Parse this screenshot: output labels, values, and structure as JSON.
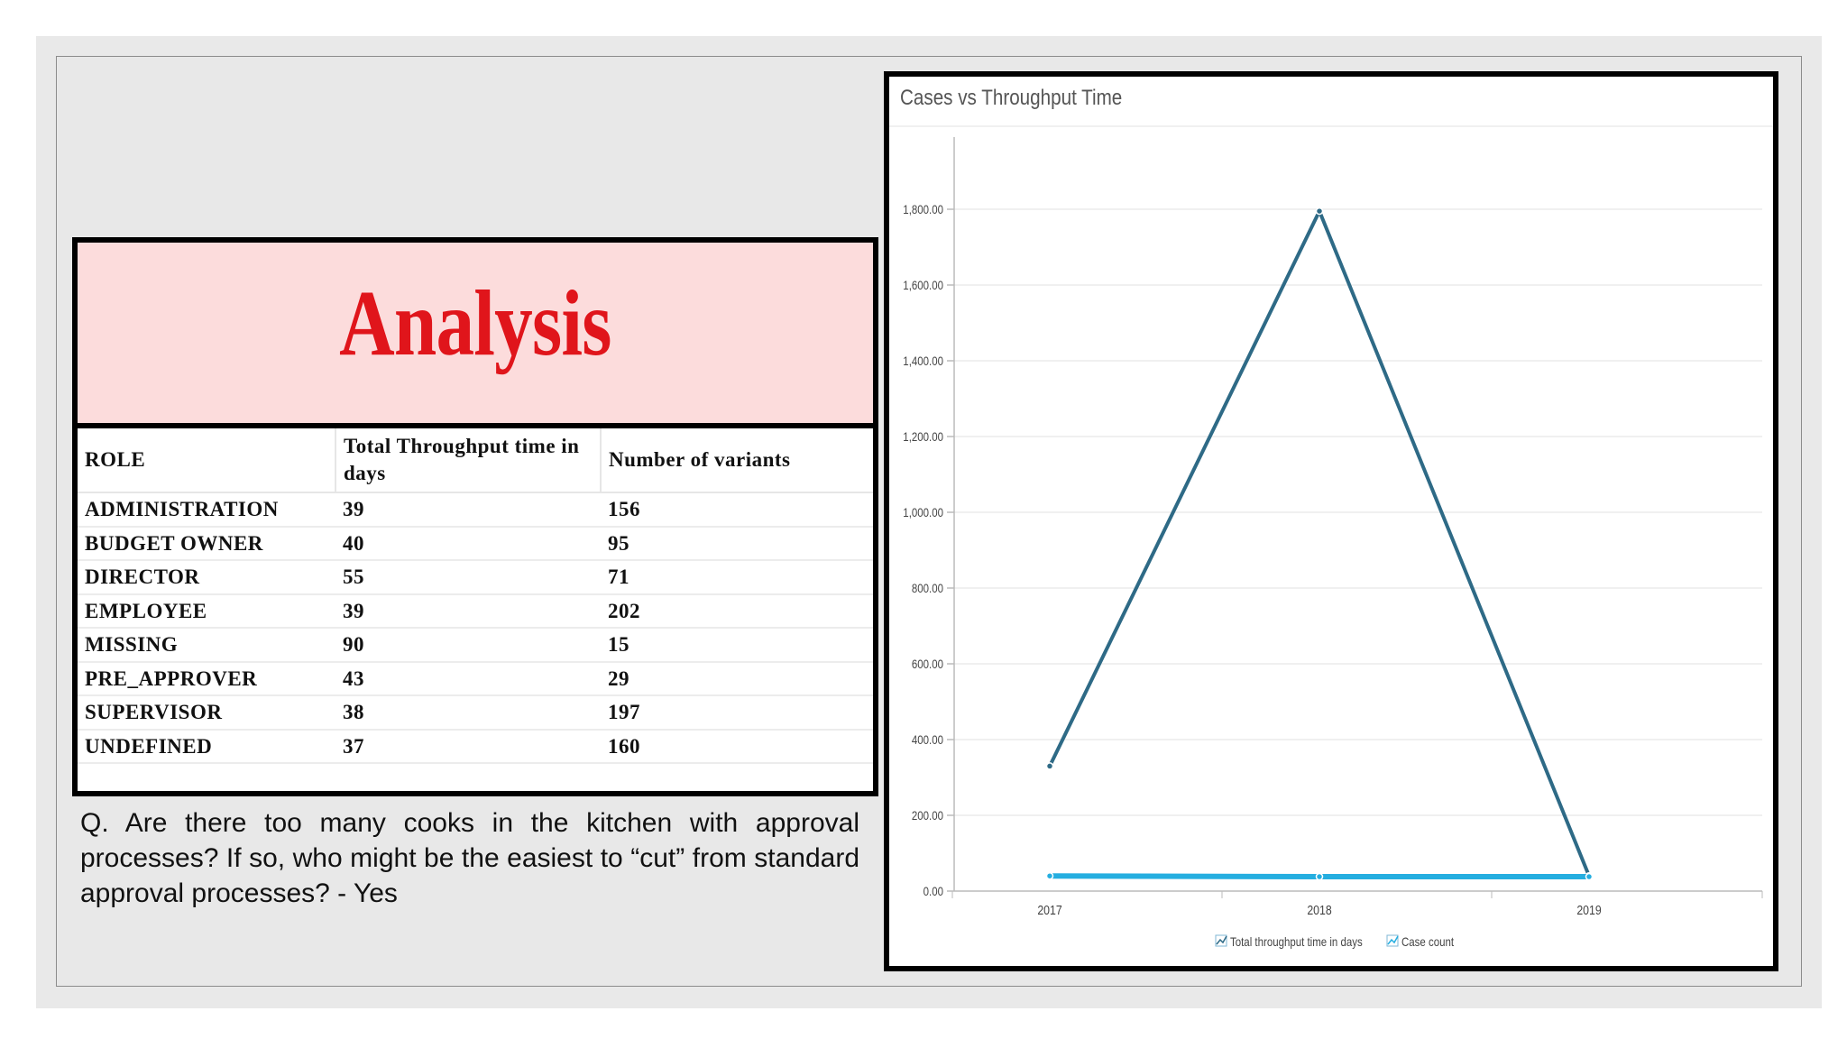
{
  "slide": {
    "heading": "Analysis",
    "table": {
      "headers": [
        "ROLE",
        "Total Throughput time in days",
        "Number of variants"
      ],
      "rows": [
        [
          "ADMINISTRATION",
          "39",
          "156"
        ],
        [
          "BUDGET OWNER",
          "40",
          "95"
        ],
        [
          "DIRECTOR",
          "55",
          "71"
        ],
        [
          "EMPLOYEE",
          "39",
          "202"
        ],
        [
          "MISSING",
          "90",
          "15"
        ],
        [
          "PRE_APPROVER",
          "43",
          "29"
        ],
        [
          "SUPERVISOR",
          "38",
          "197"
        ],
        [
          "UNDEFINED",
          "37",
          "160"
        ]
      ]
    },
    "question": "Q. Are there too many cooks in the kitchen with approval processes? If so, who might be the easiest to “cut” from standard approval processes? - Yes"
  },
  "chart_data": {
    "type": "line",
    "title": "Cases vs Throughput Time",
    "categories": [
      "2017",
      "2018",
      "2019"
    ],
    "ylim": [
      0,
      1800
    ],
    "yticks": [
      0,
      200,
      400,
      600,
      800,
      1000,
      1200,
      1400,
      1600,
      1800
    ],
    "ytick_labels": [
      "0.00",
      "200.00",
      "400.00",
      "600.00",
      "800.00",
      "1,000.00",
      "1,200.00",
      "1,400.00",
      "1,600.00",
      "1,800.00"
    ],
    "grid": true,
    "legend_position": "bottom",
    "series": [
      {
        "name": "Total throughput time in days",
        "values": [
          330,
          1795,
          40
        ],
        "color": "#2e6a86"
      },
      {
        "name": "Case count",
        "values": [
          40,
          38,
          38
        ],
        "color": "#25aee0"
      }
    ]
  }
}
